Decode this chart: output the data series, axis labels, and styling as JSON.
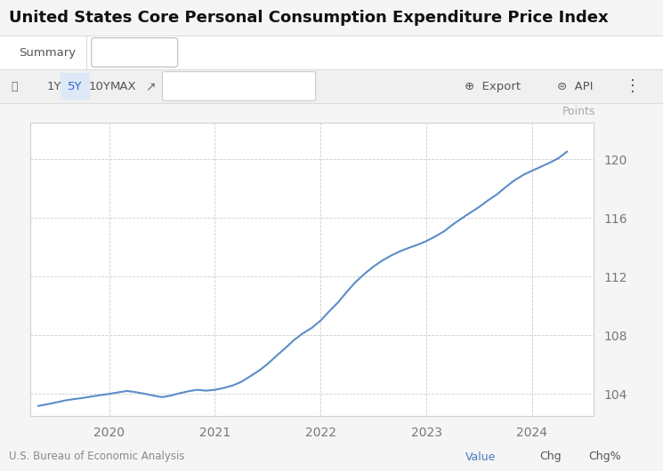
{
  "title": "United States Core Personal Consumption Expenditure Price Index",
  "ylabel": "Points",
  "source": "U.S. Bureau of Economic Analysis",
  "bg_color": "#f5f5f5",
  "plot_bg_color": "#ffffff",
  "line_color": "#5b8dc8",
  "grid_color": "#cccccc",
  "active_toolbar": "5Y",
  "footer_items": [
    "Value",
    "Chg",
    "Chg%"
  ],
  "footer_colors": [
    "#4a7bbf",
    "#555555",
    "#555555"
  ],
  "xlim_start": 2019.25,
  "xlim_end": 2024.58,
  "ylim": [
    102.5,
    122.5
  ],
  "yticks": [
    104,
    108,
    112,
    116,
    120
  ],
  "x_data": [
    2019.33,
    2019.42,
    2019.5,
    2019.58,
    2019.67,
    2019.75,
    2019.83,
    2019.92,
    2020.0,
    2020.08,
    2020.17,
    2020.25,
    2020.33,
    2020.42,
    2020.5,
    2020.58,
    2020.67,
    2020.75,
    2020.83,
    2020.92,
    2021.0,
    2021.08,
    2021.17,
    2021.25,
    2021.33,
    2021.42,
    2021.5,
    2021.58,
    2021.67,
    2021.75,
    2021.83,
    2021.92,
    2022.0,
    2022.08,
    2022.17,
    2022.25,
    2022.33,
    2022.42,
    2022.5,
    2022.58,
    2022.67,
    2022.75,
    2022.83,
    2022.92,
    2023.0,
    2023.08,
    2023.17,
    2023.25,
    2023.33,
    2023.42,
    2023.5,
    2023.58,
    2023.67,
    2023.75,
    2023.83,
    2023.92,
    2024.0,
    2024.08,
    2024.17,
    2024.25,
    2024.33
  ],
  "y_data": [
    103.18,
    103.3,
    103.42,
    103.55,
    103.65,
    103.72,
    103.82,
    103.92,
    104.0,
    104.1,
    104.2,
    104.12,
    104.02,
    103.88,
    103.78,
    103.88,
    104.05,
    104.18,
    104.28,
    104.22,
    104.28,
    104.4,
    104.58,
    104.82,
    105.18,
    105.6,
    106.05,
    106.58,
    107.15,
    107.68,
    108.12,
    108.52,
    109.0,
    109.62,
    110.28,
    110.98,
    111.62,
    112.22,
    112.68,
    113.08,
    113.45,
    113.72,
    113.95,
    114.18,
    114.42,
    114.72,
    115.1,
    115.55,
    115.95,
    116.38,
    116.75,
    117.18,
    117.62,
    118.1,
    118.55,
    118.95,
    119.22,
    119.48,
    119.78,
    120.08,
    120.52
  ],
  "xtick_positions": [
    2020.0,
    2021.0,
    2022.0,
    2023.0,
    2024.0
  ],
  "xtick_labels": [
    "2020",
    "2021",
    "2022",
    "2023",
    "2024"
  ],
  "header_bg": "#f5f5f5",
  "toolbar_bg": "#ffffff",
  "filterbar_bg": "#f0f0f0",
  "title_fontsize": 13,
  "tick_fontsize": 10,
  "points_label_color": "#aaaaaa"
}
